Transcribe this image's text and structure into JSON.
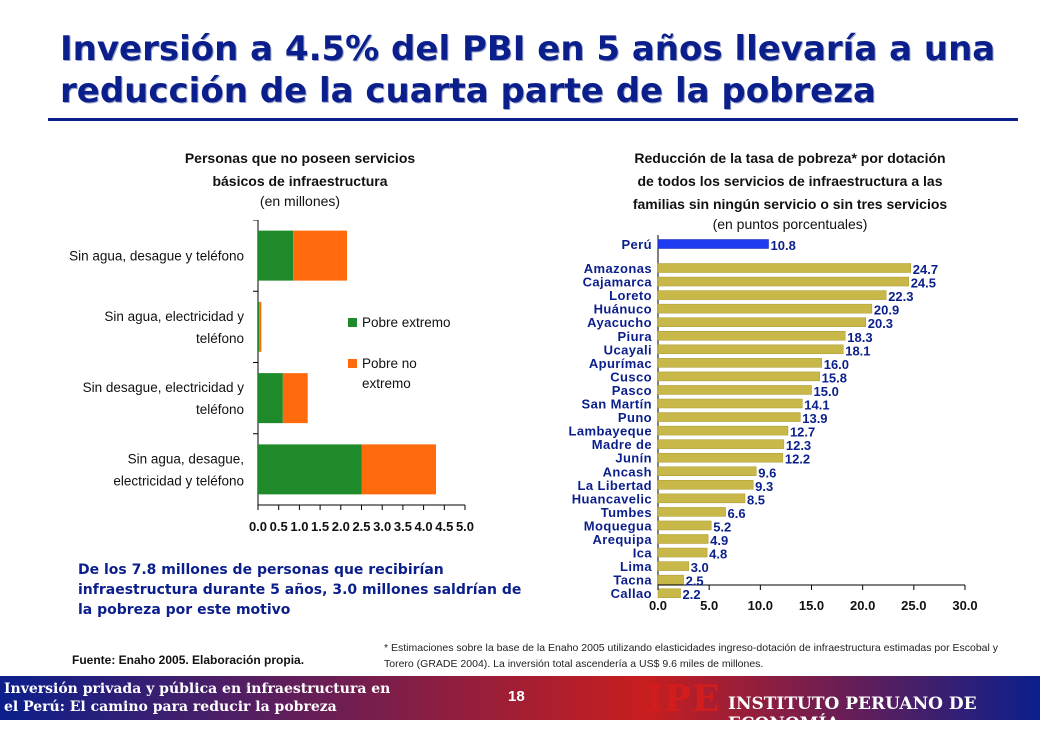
{
  "slide": {
    "title": "Inversión a 4.5% del PBI en 5 años llevaría a una reducción de la cuarta parte de la pobreza",
    "title_line1": "Inversión a 4.5% del PBI en 5 años llevaría a una",
    "title_line2": "reducción de la cuarta parte de la pobreza",
    "note": "De los 7.8 millones de personas que recibirían infraestructura durante 5 años, 3.0 millones saldrían de la pobreza por este motivo",
    "source": "Fuente: Enaho 2005. Elaboración propia.",
    "footnote": "* Estimaciones sobre la base de la Enaho 2005 utilizando elasticidades ingreso-dotación de infraestructura estimadas por Escobal y Torero (GRADE 2004).  La inversión total ascendería a US$ 9.6 miles de millones.",
    "footer_line1": "Inversión privada y pública en infraestructura en",
    "footer_line2": "el Perú: El camino para reducir la pobreza",
    "page_number": "18",
    "logo_mark": "IPE",
    "logo_name": "INSTITUTO PERUANO DE ECONOMÍA"
  },
  "colors": {
    "title": "#0b1f8c",
    "pobre_extremo": "#1f8a2a",
    "pobre_no_extremo": "#ff6a0c",
    "peru_bar": "#1f3cf0",
    "region_bar": "#c8b84a"
  },
  "chart_data": [
    {
      "type": "bar",
      "orientation": "horizontal",
      "stacked": true,
      "title": "Personas que no poseen servicios básicos de infraestructura",
      "subtitle": "(en millones)",
      "title_line1": "Personas que no poseen servicios",
      "title_line2": "básicos de infraestructura",
      "categories": [
        "Sin agua, desague y teléfono",
        "Sin agua, electricidad y teléfono",
        "Sin desague, electricidad y teléfono",
        "Sin agua, desague, electricidad y teléfono"
      ],
      "category_lines": [
        [
          "Sin agua, desague y teléfono"
        ],
        [
          "Sin agua, electricidad y",
          "teléfono"
        ],
        [
          "Sin desague, electricidad y",
          "teléfono"
        ],
        [
          "Sin agua, desague,",
          "electricidad y teléfono"
        ]
      ],
      "series": [
        {
          "name": "Pobre extremo",
          "values": [
            0.85,
            0.03,
            0.6,
            2.5
          ]
        },
        {
          "name": "Pobre no extremo",
          "values": [
            1.3,
            0.05,
            0.6,
            1.8
          ]
        }
      ],
      "legend_lines": [
        [
          "Pobre extremo"
        ],
        [
          "Pobre no",
          "extremo"
        ]
      ],
      "xlim": [
        0,
        5
      ],
      "xticks": [
        "0.0",
        "0.5",
        "1.0",
        "1.5",
        "2.0",
        "2.5",
        "3.0",
        "3.5",
        "4.0",
        "4.5",
        "5.0"
      ],
      "legend_position": "right"
    },
    {
      "type": "bar",
      "orientation": "horizontal",
      "title": "Reducción de la tasa de pobreza* por dotación de todos los servicios de infraestructura a las familias sin ningún servicio o sin tres servicios",
      "subtitle": "(en puntos porcentuales)",
      "title_line1": "Reducción de la tasa de pobreza* por dotación",
      "title_line2": "de todos los servicios de infraestructura  a las",
      "title_line3": "familias sin ningún servicio o sin tres servicios",
      "categories": [
        "Perú",
        "Amazonas",
        "Cajamarca",
        "Loreto",
        "Huánuco",
        "Ayacucho",
        "Piura",
        "Ucayali",
        "Apurímac",
        "Cusco",
        "Pasco",
        "San Martín",
        "Puno",
        "Lambayeque",
        "Madre de",
        "Junín",
        "Ancash",
        "La Libertad",
        "Huancavelic",
        "Tumbes",
        "Moquegua",
        "Arequipa",
        "Ica",
        "Lima",
        "Tacna",
        "Callao"
      ],
      "values": [
        10.8,
        24.7,
        24.5,
        22.3,
        20.9,
        20.3,
        18.3,
        18.1,
        16.0,
        15.8,
        15.0,
        14.1,
        13.9,
        12.7,
        12.3,
        12.2,
        9.6,
        9.3,
        8.5,
        6.6,
        5.2,
        4.9,
        4.8,
        3.0,
        2.5,
        2.2
      ],
      "labels": [
        "10.8",
        "24.7",
        "24.5",
        "22.3",
        "20.9",
        "20.3",
        "18.3",
        "18.1",
        "16.0",
        "15.8",
        "15.0",
        "14.1",
        "13.9",
        "12.7",
        "12.3",
        "12.2",
        "9.6",
        "9.3",
        "8.5",
        "6.6",
        "5.2",
        "4.9",
        "4.8",
        "3.0",
        "2.5",
        "2.2"
      ],
      "xlim": [
        0,
        30
      ],
      "xticks": [
        "0.0",
        "5.0",
        "10.0",
        "15.0",
        "20.0",
        "25.0",
        "30.0"
      ]
    }
  ]
}
